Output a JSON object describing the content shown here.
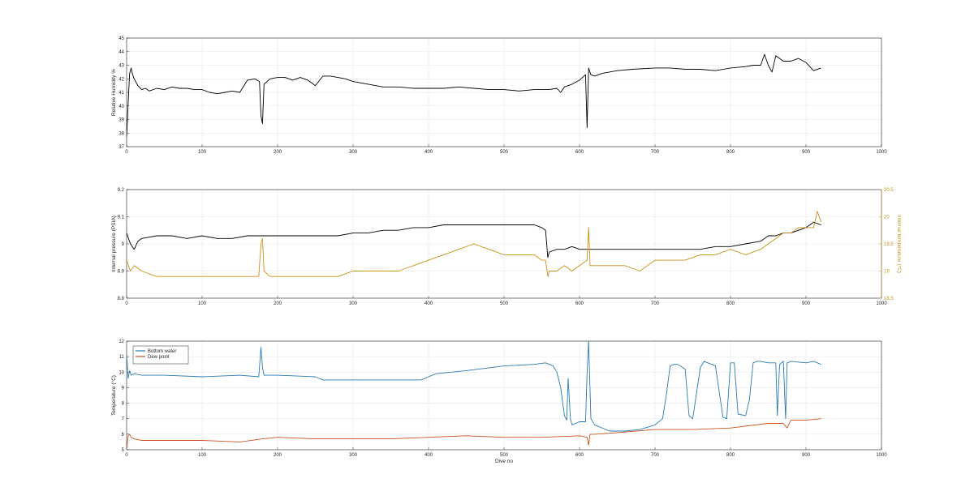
{
  "colors": {
    "black_series": "#000000",
    "pressure": "#000000",
    "internal_temperature": "#c9901a",
    "bottom_water": "#2a7ab0",
    "dew_point": "#c9521c",
    "grid": "#e6e6e6",
    "axis": "#262626"
  },
  "chart_data": [
    {
      "type": "line",
      "title": "",
      "xlabel": "",
      "ylabel": "Relative Humidity %",
      "xlim": [
        0,
        1000
      ],
      "ylim": [
        37,
        45
      ],
      "xticks": [
        "0",
        "100",
        "200",
        "300",
        "400",
        "500",
        "600",
        "700",
        "800",
        "900",
        "1000"
      ],
      "yticks": [
        "37",
        "38",
        "39",
        "40",
        "41",
        "42",
        "43",
        "44",
        "45"
      ],
      "grid": true,
      "series": [
        {
          "color": "#000000",
          "x": [
            0,
            2,
            4,
            6,
            8,
            10,
            15,
            20,
            25,
            30,
            40,
            50,
            60,
            70,
            80,
            90,
            100,
            110,
            120,
            130,
            140,
            150,
            160,
            170,
            176,
            178,
            180,
            182,
            190,
            200,
            210,
            220,
            230,
            240,
            250,
            260,
            270,
            280,
            290,
            300,
            320,
            340,
            360,
            380,
            400,
            420,
            440,
            460,
            480,
            500,
            520,
            540,
            560,
            570,
            575,
            580,
            590,
            600,
            608,
            610,
            612,
            615,
            620,
            630,
            650,
            670,
            700,
            720,
            740,
            760,
            780,
            800,
            820,
            830,
            840,
            845,
            850,
            855,
            860,
            870,
            880,
            890,
            900,
            910,
            920
          ],
          "y": [
            37.7,
            40.2,
            42.4,
            42.8,
            42.3,
            42.0,
            41.5,
            41.2,
            41.3,
            41.1,
            41.3,
            41.2,
            41.4,
            41.3,
            41.3,
            41.2,
            41.2,
            41.0,
            40.9,
            41.0,
            41.1,
            41.0,
            41.9,
            42.0,
            41.8,
            39.3,
            38.7,
            41.6,
            42.0,
            42.1,
            42.1,
            41.9,
            42.1,
            41.9,
            41.5,
            42.2,
            42.2,
            42.1,
            42.0,
            41.8,
            41.6,
            41.4,
            41.4,
            41.3,
            41.3,
            41.3,
            41.4,
            41.3,
            41.2,
            41.2,
            41.1,
            41.2,
            41.2,
            41.3,
            41.0,
            41.4,
            41.6,
            41.9,
            42.3,
            38.4,
            42.8,
            42.3,
            42.2,
            42.4,
            42.6,
            42.7,
            42.8,
            42.8,
            42.7,
            42.7,
            42.6,
            42.8,
            42.9,
            43.0,
            43.0,
            43.8,
            43.0,
            42.5,
            43.7,
            43.3,
            43.3,
            43.5,
            43.2,
            42.6,
            42.8
          ]
        }
      ]
    },
    {
      "type": "line",
      "title": "",
      "xlabel": "",
      "ylabel": "Internal pressure (PSIA)",
      "ylabel_right": "Internal temperature (°C)",
      "xlim": [
        0,
        1000
      ],
      "ylim": [
        8.8,
        9.2
      ],
      "ylim_right": [
        18.5,
        20.5
      ],
      "xticks": [
        "0",
        "100",
        "200",
        "300",
        "400",
        "500",
        "600",
        "700",
        "800",
        "900",
        "1000"
      ],
      "yticks": [
        "8.8",
        "8.9",
        "9",
        "9.1",
        "9.2"
      ],
      "yticks_right": [
        "18.5",
        "19",
        "19.5",
        "20",
        "20.5"
      ],
      "grid": true,
      "series": [
        {
          "axis": "left",
          "color": "#000000",
          "x": [
            0,
            5,
            10,
            15,
            20,
            40,
            60,
            80,
            100,
            120,
            140,
            160,
            180,
            200,
            220,
            240,
            260,
            280,
            300,
            320,
            340,
            360,
            380,
            400,
            420,
            440,
            460,
            480,
            500,
            520,
            540,
            550,
            555,
            558,
            560,
            570,
            580,
            590,
            600,
            620,
            640,
            660,
            680,
            700,
            720,
            740,
            760,
            780,
            800,
            820,
            840,
            850,
            860,
            870,
            880,
            890,
            900,
            910,
            920
          ],
          "y": [
            9.04,
            9.0,
            8.98,
            9.01,
            9.02,
            9.03,
            9.03,
            9.02,
            9.03,
            9.02,
            9.02,
            9.03,
            9.03,
            9.03,
            9.03,
            9.03,
            9.03,
            9.03,
            9.04,
            9.04,
            9.05,
            9.05,
            9.06,
            9.06,
            9.07,
            9.07,
            9.07,
            9.07,
            9.07,
            9.07,
            9.07,
            9.06,
            9.05,
            8.95,
            8.97,
            8.98,
            8.98,
            8.99,
            8.98,
            8.98,
            8.98,
            8.98,
            8.98,
            8.98,
            8.98,
            8.98,
            8.98,
            8.99,
            8.99,
            9.0,
            9.01,
            9.03,
            9.03,
            9.04,
            9.04,
            9.05,
            9.06,
            9.08,
            9.07
          ]
        },
        {
          "axis": "right",
          "color": "#c9901a",
          "x": [
            0,
            5,
            10,
            20,
            40,
            60,
            80,
            100,
            120,
            140,
            160,
            175,
            178,
            180,
            182,
            190,
            200,
            220,
            240,
            260,
            280,
            300,
            320,
            340,
            360,
            380,
            400,
            420,
            440,
            460,
            480,
            500,
            520,
            540,
            550,
            555,
            558,
            560,
            570,
            580,
            590,
            600,
            610,
            612,
            614,
            620,
            640,
            660,
            680,
            700,
            720,
            740,
            760,
            780,
            800,
            820,
            840,
            850,
            860,
            870,
            880,
            890,
            900,
            910,
            915,
            920
          ],
          "y": [
            19.2,
            19.0,
            19.1,
            19.0,
            18.9,
            18.9,
            18.9,
            18.9,
            18.9,
            18.9,
            18.9,
            18.9,
            19.5,
            19.6,
            19.0,
            18.9,
            18.9,
            18.9,
            18.9,
            18.9,
            18.9,
            19.0,
            19.0,
            19.0,
            19.0,
            19.1,
            19.2,
            19.3,
            19.4,
            19.5,
            19.4,
            19.3,
            19.3,
            19.3,
            19.2,
            19.2,
            18.9,
            19.0,
            19.0,
            19.1,
            19.0,
            19.1,
            19.2,
            19.8,
            19.1,
            19.1,
            19.1,
            19.1,
            19.0,
            19.2,
            19.2,
            19.2,
            19.3,
            19.3,
            19.4,
            19.3,
            19.4,
            19.5,
            19.6,
            19.7,
            19.7,
            19.8,
            19.8,
            19.8,
            20.1,
            19.9
          ]
        }
      ]
    },
    {
      "type": "line",
      "title": "",
      "xlabel": "Dive no",
      "ylabel": "Temperature (°C)",
      "xlim": [
        0,
        1000
      ],
      "ylim": [
        5,
        12
      ],
      "xticks": [
        "0",
        "100",
        "200",
        "300",
        "400",
        "500",
        "600",
        "700",
        "800",
        "900",
        "1000"
      ],
      "yticks": [
        "5",
        "6",
        "7",
        "8",
        "9",
        "10",
        "11",
        "12"
      ],
      "grid": true,
      "legend": "top-left",
      "series": [
        {
          "name": "Bottom water",
          "color": "#2a7ab0",
          "x": [
            0,
            2,
            4,
            6,
            10,
            20,
            50,
            100,
            150,
            175,
            178,
            180,
            182,
            190,
            200,
            250,
            260,
            300,
            350,
            390,
            400,
            410,
            450,
            500,
            540,
            555,
            565,
            570,
            575,
            580,
            583,
            585,
            588,
            590,
            600,
            608,
            610,
            612,
            615,
            620,
            640,
            660,
            680,
            700,
            710,
            715,
            720,
            725,
            730,
            740,
            745,
            750,
            760,
            765,
            770,
            780,
            790,
            795,
            800,
            805,
            810,
            820,
            825,
            830,
            835,
            840,
            850,
            860,
            862,
            865,
            870,
            873,
            875,
            880,
            900,
            910,
            920
          ],
          "y": [
            11.2,
            9.6,
            10.1,
            9.8,
            9.9,
            9.8,
            9.8,
            9.7,
            9.8,
            9.7,
            11.6,
            10.3,
            9.8,
            9.8,
            9.8,
            9.7,
            9.5,
            9.5,
            9.5,
            9.5,
            9.7,
            9.9,
            10.1,
            10.4,
            10.5,
            10.6,
            10.4,
            10.0,
            9.0,
            7.2,
            6.9,
            9.6,
            7.0,
            6.6,
            6.8,
            6.8,
            9.9,
            12.0,
            7.0,
            6.6,
            6.2,
            6.2,
            6.3,
            6.6,
            7.0,
            8.5,
            10.4,
            10.5,
            10.5,
            10.2,
            7.2,
            7.0,
            10.3,
            10.7,
            10.6,
            10.4,
            7.1,
            7.0,
            10.6,
            10.6,
            7.3,
            7.2,
            8.2,
            10.6,
            10.7,
            10.7,
            10.6,
            10.6,
            7.2,
            10.5,
            10.7,
            7.0,
            10.6,
            10.7,
            10.6,
            10.7,
            10.5
          ]
        },
        {
          "name": "Dew point",
          "color": "#c9521c",
          "x": [
            0,
            2,
            4,
            6,
            10,
            20,
            50,
            100,
            150,
            180,
            200,
            250,
            300,
            350,
            400,
            450,
            500,
            550,
            600,
            610,
            612,
            614,
            620,
            650,
            700,
            750,
            800,
            850,
            870,
            875,
            880,
            900,
            920
          ],
          "y": [
            5.0,
            5.9,
            6.0,
            5.8,
            5.7,
            5.6,
            5.6,
            5.6,
            5.5,
            5.7,
            5.8,
            5.7,
            5.7,
            5.7,
            5.8,
            5.9,
            5.8,
            5.8,
            5.9,
            5.8,
            5.3,
            6.0,
            6.0,
            6.1,
            6.3,
            6.3,
            6.4,
            6.7,
            6.7,
            6.4,
            6.9,
            6.9,
            7.0
          ]
        }
      ]
    }
  ]
}
